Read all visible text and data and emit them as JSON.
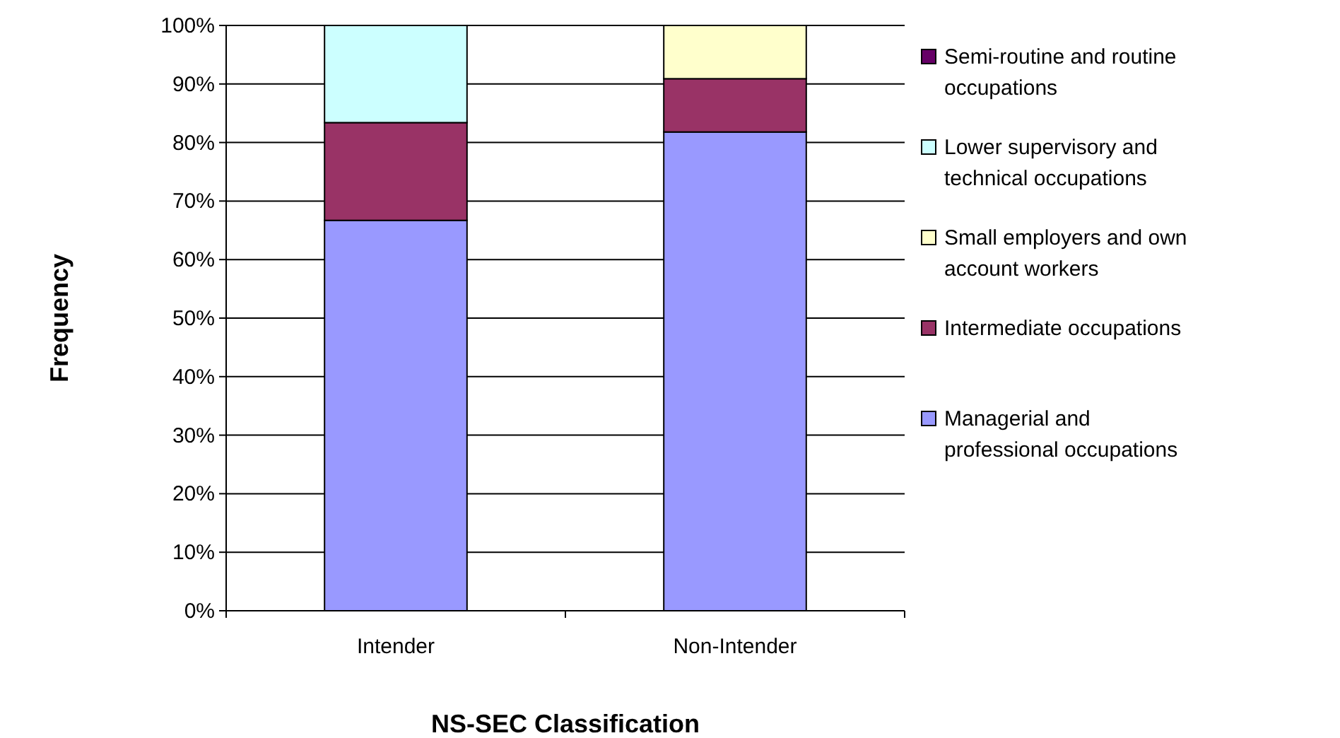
{
  "chart_data": {
    "type": "bar",
    "stacked": true,
    "xlabel": "NS-SEC Classification",
    "ylabel": "Frequency",
    "categories": [
      "Intender",
      "Non-Intender"
    ],
    "series": [
      {
        "name": "Managerial and professional occupations",
        "color": "#9999ff",
        "values": [
          66.7,
          81.8
        ]
      },
      {
        "name": "Intermediate occupations",
        "color": "#993366",
        "values": [
          16.7,
          9.1
        ]
      },
      {
        "name": "Small employers and own account workers",
        "color": "#ffffcc",
        "values": [
          0,
          9.1
        ]
      },
      {
        "name": "Lower supervisory and technical occupations",
        "color": "#ccffff",
        "values": [
          16.6,
          0
        ]
      },
      {
        "name": "Semi-routine and routine occupations",
        "color": "#660066",
        "values": [
          0,
          0
        ]
      }
    ],
    "ylim": [
      0,
      100
    ],
    "yticks": [
      {
        "value": 0,
        "label": "0%"
      },
      {
        "value": 10,
        "label": "10%"
      },
      {
        "value": 20,
        "label": "20%"
      },
      {
        "value": 30,
        "label": "30%"
      },
      {
        "value": 40,
        "label": "40%"
      },
      {
        "value": 50,
        "label": "50%"
      },
      {
        "value": 60,
        "label": "60%"
      },
      {
        "value": 70,
        "label": "70%"
      },
      {
        "value": 80,
        "label": "80%"
      },
      {
        "value": 90,
        "label": "90%"
      },
      {
        "value": 100,
        "label": "100%"
      }
    ],
    "grid": "y",
    "legend": "right"
  }
}
